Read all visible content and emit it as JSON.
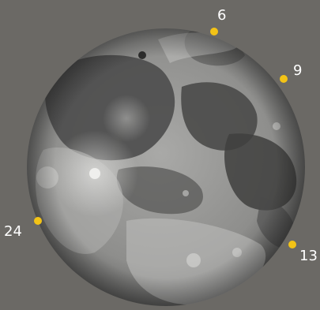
{
  "background_color": "#6b6965",
  "moon": {
    "subject": "full moon",
    "colors": {
      "bright": "#d8d8d6",
      "mid": "#9b9b99",
      "maria": "#4a4a49",
      "rim": "#3c3c3b"
    }
  },
  "markers": {
    "dot_color": "#f3c316",
    "label_color": "#ffffff",
    "items": [
      {
        "label": "6"
      },
      {
        "label": "9"
      },
      {
        "label": "13"
      },
      {
        "label": "24"
      }
    ]
  }
}
